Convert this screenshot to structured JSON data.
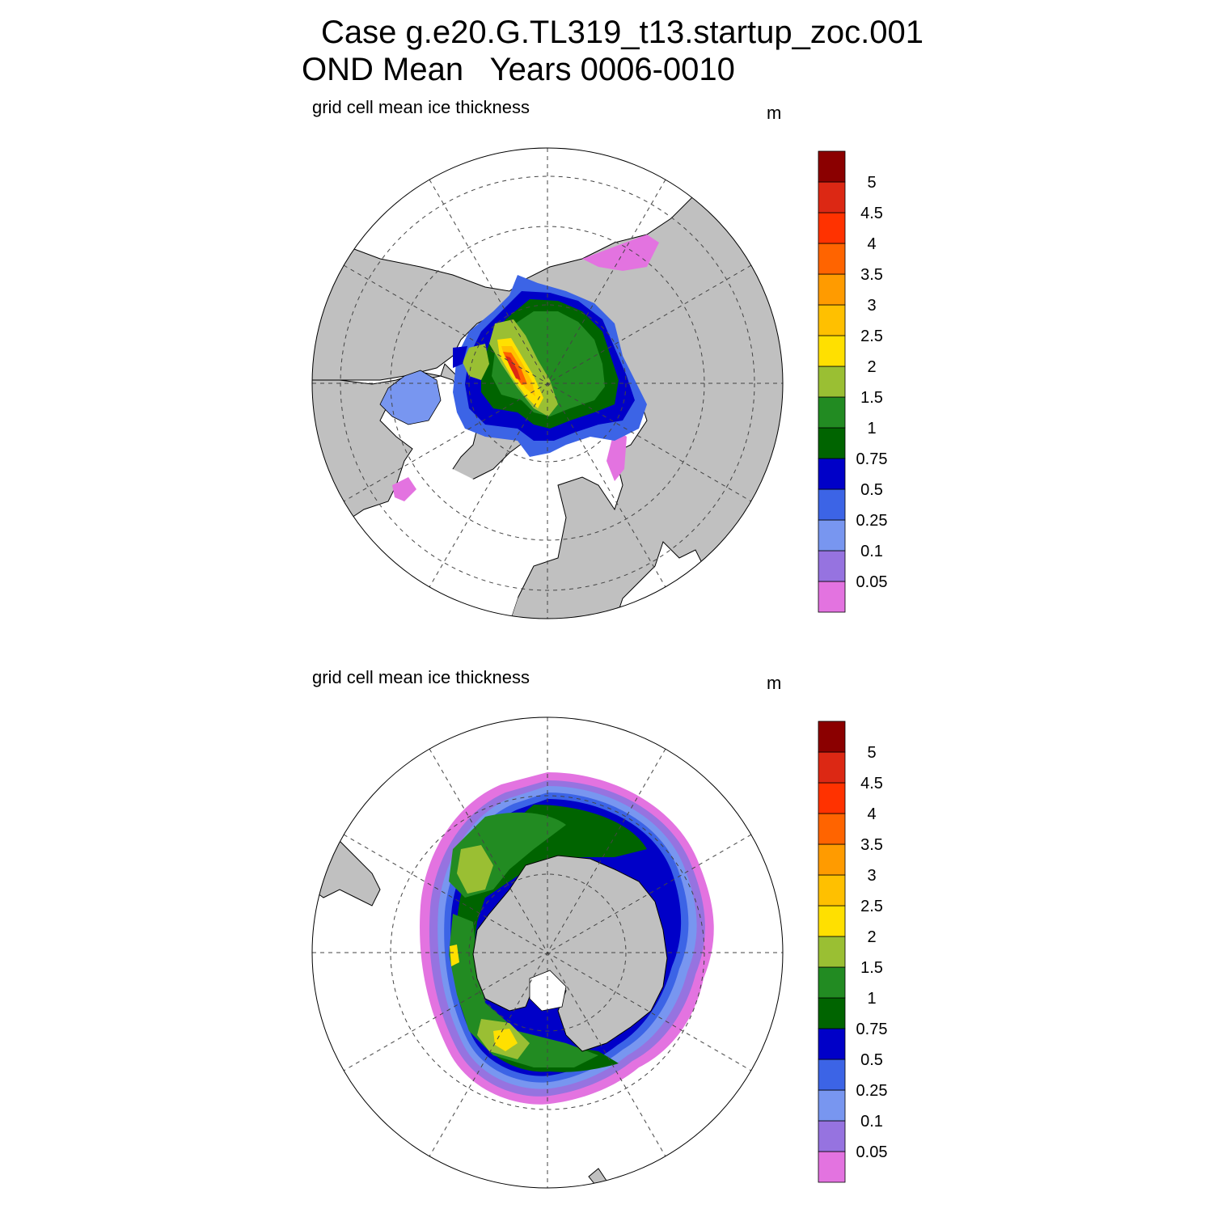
{
  "header": {
    "case_line": "Case g.e20.G.TL319_t13.startup_zoc.001",
    "period_line": "OND Mean   Years 0006-0010"
  },
  "panels": [
    {
      "hemisphere": "north",
      "variable_label": "grid cell mean ice thickness",
      "units": "m"
    },
    {
      "hemisphere": "south",
      "variable_label": "grid cell mean ice thickness",
      "units": "m"
    }
  ],
  "colorbar": {
    "levels": [
      "0.05",
      "0.1",
      "0.25",
      "0.5",
      "0.75",
      "1",
      "1.5",
      "2",
      "2.5",
      "3",
      "3.5",
      "4",
      "4.5",
      "5"
    ],
    "colors": [
      "#e373e0",
      "#9673e0",
      "#7896f0",
      "#3c64e6",
      "#0000c8",
      "#006400",
      "#228b22",
      "#9abf33",
      "#ffe000",
      "#ffc000",
      "#ff9b00",
      "#ff6400",
      "#ff3200",
      "#dc2814",
      "#8b0000"
    ]
  },
  "map_colors": {
    "land": "#c0c0c0",
    "ocean": "#ffffff"
  }
}
